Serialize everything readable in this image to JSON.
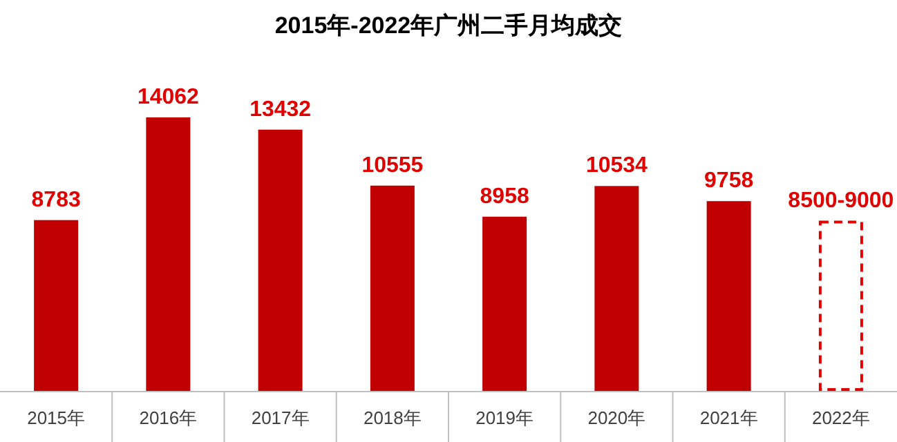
{
  "chart_data": {
    "type": "bar",
    "title": "2015年-2022年广州二手月均成交",
    "categories": [
      "2015年",
      "2016年",
      "2017年",
      "2018年",
      "2019年",
      "2020年",
      "2021年",
      "2022年"
    ],
    "series": [
      {
        "color": "#c00000",
        "values": [
          8783,
          14062,
          13432,
          10555,
          8958,
          10534,
          9758,
          null
        ],
        "value_labels": [
          "8783",
          "14062",
          "13432",
          "10555",
          "8958",
          "10534",
          "9758",
          null
        ]
      },
      {
        "color": "#e00000",
        "line_style": "dashed",
        "values": [
          null,
          null,
          null,
          null,
          null,
          null,
          null,
          8750
        ],
        "value_labels": [
          null,
          null,
          null,
          null,
          null,
          null,
          null,
          "8500-9000"
        ]
      }
    ]
  }
}
